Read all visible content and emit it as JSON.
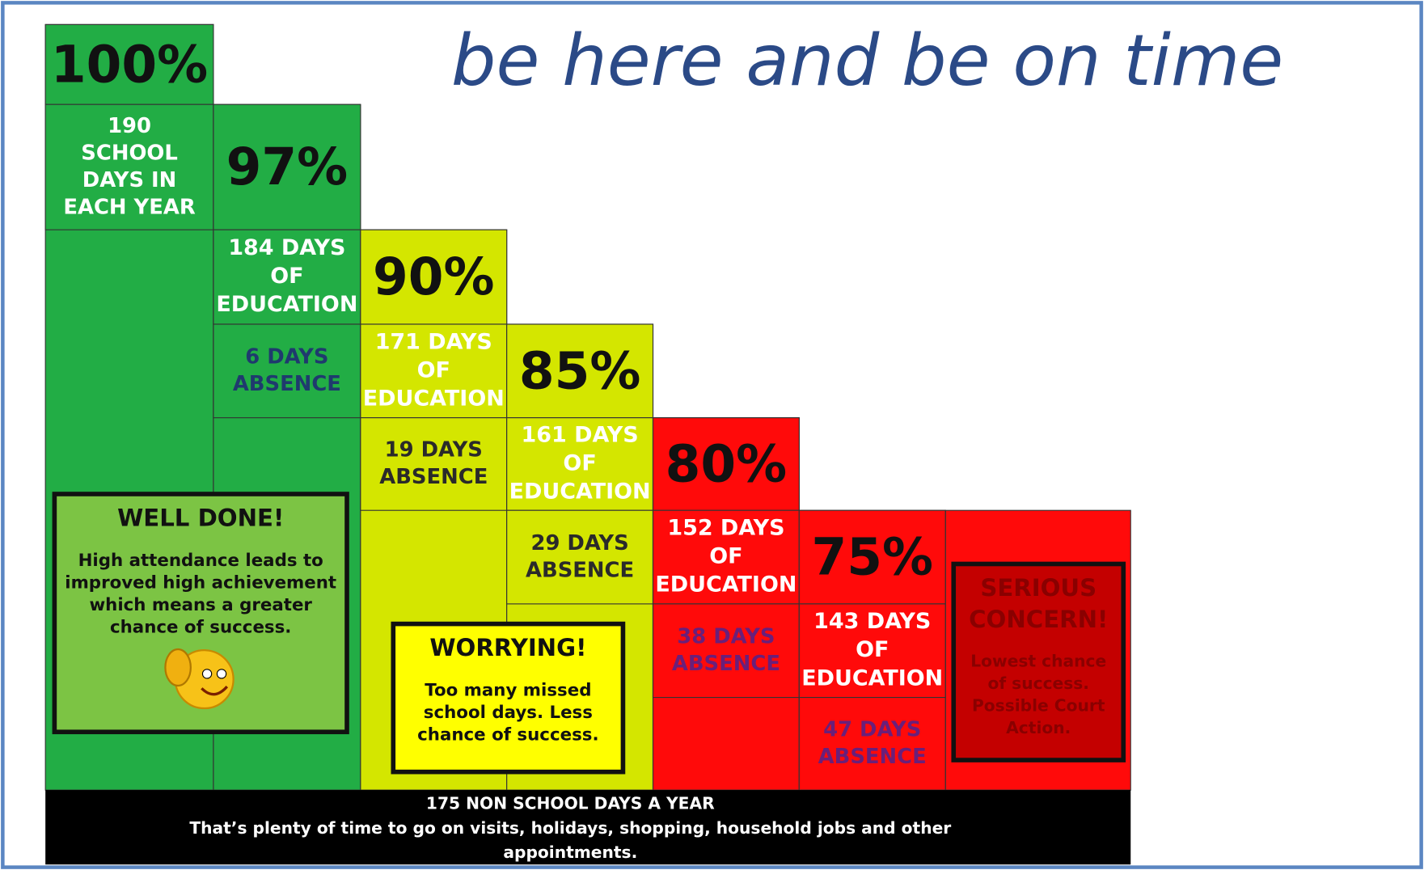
{
  "title": "be here and be on time",
  "columns": [
    {
      "percent": "100%",
      "days": [
        "190",
        "SCHOOL",
        "DAYS IN",
        "EACH YEAR"
      ]
    },
    {
      "percent": "97%",
      "days": [
        "184 DAYS",
        "OF",
        "EDUCATION"
      ],
      "absence": [
        "6 DAYS",
        "ABSENCE"
      ]
    },
    {
      "percent": "90%",
      "days": [
        "171 DAYS",
        "OF",
        "EDUCATION"
      ],
      "absence": [
        "19 DAYS",
        "ABSENCE"
      ]
    },
    {
      "percent": "85%",
      "days": [
        "161 DAYS",
        "OF",
        "EDUCATION"
      ],
      "absence": [
        "29 DAYS",
        "ABSENCE"
      ]
    },
    {
      "percent": "80%",
      "days": [
        "152 DAYS",
        "OF",
        "EDUCATION"
      ],
      "absence": [
        "38 DAYS",
        "ABSENCE"
      ]
    },
    {
      "percent": "75%",
      "days": [
        "143 DAYS",
        "OF",
        "EDUCATION"
      ],
      "absence": [
        "47 DAYS",
        "ABSENCE"
      ]
    }
  ],
  "boxes": [
    {
      "heading": "WELL DONE!",
      "text": [
        "High attendance leads to",
        "improved high achievement",
        "which means a greater",
        "chance of success."
      ]
    },
    {
      "heading": "WORRYING!",
      "text": [
        "Too many missed",
        "school days. Less",
        "chance of success."
      ]
    },
    {
      "heading": [
        "SERIOUS",
        "CONCERN!"
      ],
      "text": [
        "Lowest chance",
        "of success.",
        "Possible Court",
        "Action."
      ]
    }
  ],
  "footer": [
    "175 NON SCHOOL DAYS A YEAR",
    "That’s plenty of time to go on visits, holidays, shopping, household jobs and other",
    "appointments."
  ]
}
